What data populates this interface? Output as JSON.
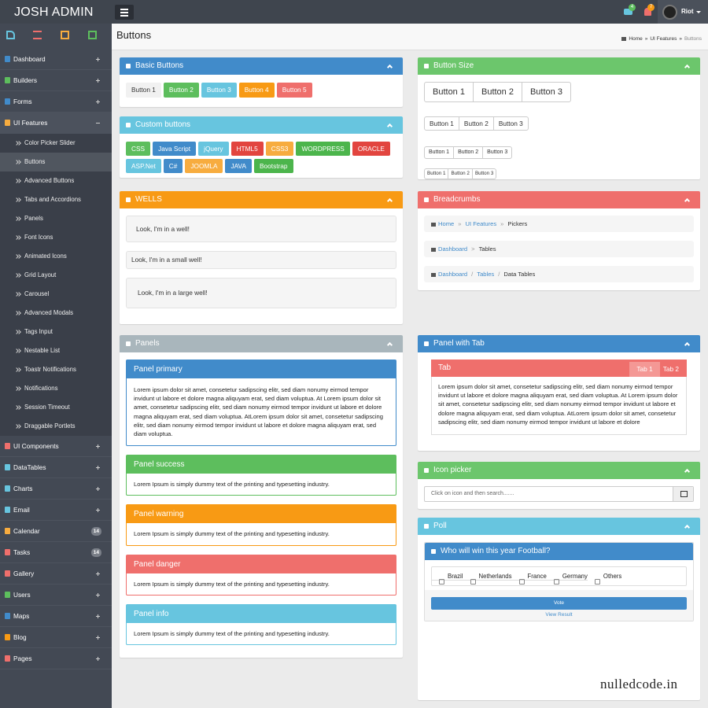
{
  "brand": "JOSH ADMIN",
  "header": {
    "mail_badge": 4,
    "notif_badge": 7,
    "user": "Riot"
  },
  "page": {
    "title": "Buttons",
    "breadcrumb": {
      "separator": "»",
      "items": [
        "Home",
        "UI Features",
        "Buttons"
      ]
    }
  },
  "sidebar": {
    "items": [
      {
        "label": "Dashboard"
      },
      {
        "label": "Builders"
      },
      {
        "label": "Forms"
      },
      {
        "label": "UI Features",
        "children": [
          "Color Picker Slider",
          "Buttons",
          "Advanced Buttons",
          "Tabs and Accordions",
          "Panels",
          "Font Icons",
          "Animated Icons",
          "Grid Layout",
          "Carousel",
          "Advanced Modals",
          "Tags Input",
          "Nestable List",
          "Toastr Notifications",
          "Notifications",
          "Session Timeout",
          "Draggable Portlets"
        ]
      },
      {
        "label": "UI Components"
      },
      {
        "label": "DataTables"
      },
      {
        "label": "Charts"
      },
      {
        "label": "Email"
      },
      {
        "label": "Calendar",
        "badge": 14
      },
      {
        "label": "Tasks",
        "badge": 14
      },
      {
        "label": "Gallery"
      },
      {
        "label": "Users"
      },
      {
        "label": "Maps"
      },
      {
        "label": "Blog"
      },
      {
        "label": "Pages"
      }
    ]
  },
  "basic_buttons": {
    "title": "Basic Buttons",
    "color": "#418bca",
    "buttons": [
      {
        "label": "Button 1",
        "color": "#f1f1f1"
      },
      {
        "label": "Button 2",
        "color": "#5dbe5d"
      },
      {
        "label": "Button 3",
        "color": "#67c5df"
      },
      {
        "label": "Button 4",
        "color": "#f89a14"
      },
      {
        "label": "Button 5",
        "color": "#ef6f6c"
      }
    ]
  },
  "custom_buttons": {
    "title": "Custom buttons",
    "color": "#67c5df",
    "rows": [
      [
        {
          "label": "CSS",
          "color": "#5dbe5d"
        },
        {
          "label": "Java Script",
          "color": "#418bca"
        },
        {
          "label": "jQuery",
          "color": "#67c5df"
        },
        {
          "label": "HTML5",
          "color": "#e2453f"
        },
        {
          "label": "CSS3",
          "color": "#f7ac3f"
        },
        {
          "label": "WORDPRESS",
          "color": "#4cb54c"
        },
        {
          "label": "ORACLE",
          "color": "#e2453f"
        }
      ],
      [
        {
          "label": "ASP.Net",
          "color": "#67c5df"
        },
        {
          "label": "C#",
          "color": "#418bca"
        },
        {
          "label": "JOOMLA",
          "color": "#f7ac3f"
        },
        {
          "label": "JAVA",
          "color": "#418bca"
        },
        {
          "label": "Bootstrap",
          "color": "#4cb54c"
        }
      ]
    ]
  },
  "wells": {
    "title": "WELLS",
    "color": "#f89a14",
    "items": [
      "Look, I'm in a well!",
      "Look, I'm in a small well!",
      "Look, I'm in a large well!"
    ]
  },
  "panels": {
    "title": "Panels",
    "color": "#a9b6bc",
    "items": [
      {
        "title": "Panel primary",
        "color": "#418bca",
        "text": "Lorem ipsum dolor sit amet, consetetur sadipscing elitr, sed diam nonumy eirmod tempor invidunt ut labore et dolore magna aliquyam erat, sed diam voluptua. At Lorem ipsum dolor sit amet, consetetur sadipscing elitr, sed diam nonumy eirmod tempor invidunt ut labore et dolore magna aliquyam erat, sed diam voluptua. AtLorem ipsum dolor sit amet, consetetur sadipscing elitr, sed diam nonumy eirmod tempor invidunt ut labore et dolore magna aliquyam erat, sed diam voluptua."
      },
      {
        "title": "Panel success",
        "color": "#5dbe5d",
        "text": "Lorem Ipsum is simply dummy text of the printing and typesetting industry."
      },
      {
        "title": "Panel warning",
        "color": "#f89a14",
        "text": "Lorem Ipsum is simply dummy text of the printing and typesetting industry."
      },
      {
        "title": "Panel danger",
        "color": "#ef6f6c",
        "text": "Lorem Ipsum is simply dummy text of the printing and typesetting industry."
      },
      {
        "title": "Panel info",
        "color": "#67c5df",
        "text": "Lorem Ipsum is simply dummy text of the printing and typesetting industry."
      }
    ]
  },
  "button_size": {
    "title": "Button Size",
    "color": "#6cc66c",
    "groups": [
      [
        "Button 1",
        "Button 2",
        "Button 3"
      ],
      [
        "Button 1",
        "Button 2",
        "Button 3"
      ],
      [
        "Button 1",
        "Button 2",
        "Button 3"
      ],
      [
        "Button 1",
        "Button 2",
        "Button 3"
      ]
    ]
  },
  "breadcrumbs": {
    "title": "Breadcrumbs",
    "color": "#ef6f6c",
    "trails": [
      {
        "separator": "»",
        "items": [
          "Home",
          "UI Features",
          "Pickers"
        ]
      },
      {
        "separator": ">",
        "items": [
          "Dashboard",
          "Tables"
        ]
      },
      {
        "separator": "/",
        "items": [
          "Dashboard",
          "Tables",
          "Data Tables"
        ]
      }
    ]
  },
  "panel_with_tab": {
    "title": "Panel with Tab",
    "color": "#418bca",
    "tab_color": "#ef6f6c",
    "tab_title": "Tab",
    "tabs": [
      "Tab 1",
      "Tab 2"
    ],
    "text": "Lorem ipsum dolor sit amet, consetetur sadipscing elitr, sed diam nonumy eirmod tempor invidunt ut labore et dolore magna aliquyam erat, sed diam voluptua. At Lorem ipsum dolor sit amet, consetetur sadipscing elitr, sed diam nonumy eirmod tempor invidunt ut labore et dolore magna aliquyam erat, sed diam voluptua. AtLorem ipsum dolor sit amet, consetetur sadipscing elitr, sed diam nonumy eirmod tempor invidunt ut labore et dolore"
  },
  "icon_picker": {
    "title": "Icon picker",
    "color": "#6cc66c",
    "placeholder": "Click on icon and then search......."
  },
  "poll": {
    "title": "Poll",
    "color": "#67c5df",
    "question_color": "#418bca",
    "question": "Who will win this year Football?",
    "options": [
      "Brazil",
      "Netherlands",
      "France",
      "Germany",
      "Others"
    ],
    "vote": "Vote",
    "view_result": "View Result"
  },
  "watermark": "nulledcode.in"
}
